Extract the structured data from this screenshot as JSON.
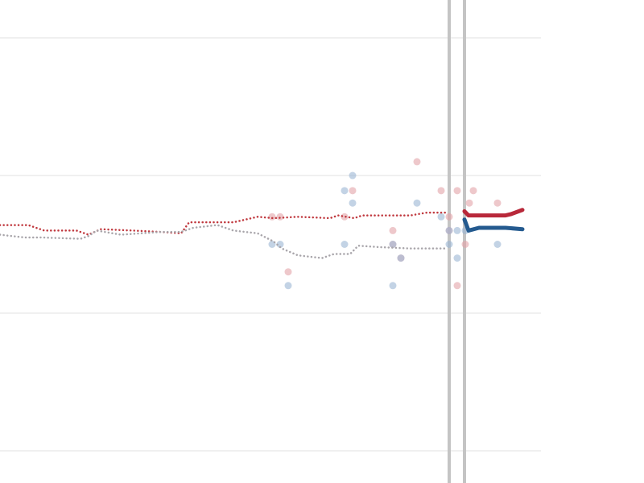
{
  "chart_data": {
    "type": "line",
    "xlim": [
      0,
      80
    ],
    "ylim": [
      -0.234,
      3.275
    ],
    "yticks": [
      0,
      1,
      2,
      3
    ],
    "grid": true,
    "markers": [
      55.8,
      57.7
    ],
    "marker_color": "#c4c4c4",
    "series": [
      {
        "style": "dotted",
        "color": "#c0393f",
        "x": [
          0,
          3.5,
          5.5,
          9.5,
          11,
          12.5,
          16.5,
          20,
          22.5,
          23.5,
          29,
          32,
          34,
          37,
          41,
          42,
          44,
          45,
          51,
          53,
          55.6
        ],
        "values": [
          1.64,
          1.64,
          1.6,
          1.6,
          1.57,
          1.61,
          1.6,
          1.59,
          1.58,
          1.66,
          1.66,
          1.7,
          1.69,
          1.7,
          1.69,
          1.71,
          1.69,
          1.71,
          1.71,
          1.73,
          1.73
        ]
      },
      {
        "style": "dotted",
        "color": "#a9a6ab",
        "x": [
          0,
          3,
          5,
          10,
          11,
          12,
          15,
          20,
          22.5,
          24,
          27,
          29,
          32,
          34,
          35,
          37,
          40,
          41.5,
          43.5,
          44.5,
          47,
          51,
          55.6
        ],
        "values": [
          1.57,
          1.55,
          1.55,
          1.54,
          1.56,
          1.6,
          1.57,
          1.59,
          1.59,
          1.62,
          1.64,
          1.6,
          1.58,
          1.52,
          1.47,
          1.42,
          1.4,
          1.43,
          1.43,
          1.49,
          1.48,
          1.47,
          1.47
        ]
      },
      {
        "style": "solid",
        "color": "#b8283a",
        "x": [
          57.7,
          58.2,
          60,
          62.8,
          63.5,
          64.9
        ],
        "values": [
          1.74,
          1.71,
          1.71,
          1.71,
          1.72,
          1.75
        ]
      },
      {
        "style": "solid",
        "color": "#245a8f",
        "x": [
          57.7,
          58.2,
          59.5,
          62.8,
          64.9
        ],
        "values": [
          1.68,
          1.6,
          1.62,
          1.62,
          1.61
        ]
      },
      {
        "style": "points",
        "color": "#e3a3a8",
        "x": [
          33.8,
          34.8,
          35.8,
          42.8,
          43.8,
          48.8,
          48.8,
          49.8,
          51.8,
          54.8,
          55.8,
          55.8,
          56.8,
          56.8,
          57.8,
          58.3,
          58.8,
          61.8
        ],
        "values": [
          1.7,
          1.7,
          1.3,
          1.7,
          1.89,
          1.6,
          1.5,
          1.4,
          2.1,
          1.89,
          1.7,
          1.6,
          1.89,
          1.2,
          1.5,
          1.8,
          1.89,
          1.8
        ]
      },
      {
        "style": "points",
        "color": "#9bb5d4",
        "x": [
          33.8,
          34.8,
          35.8,
          42.8,
          42.8,
          43.8,
          43.8,
          48.8,
          48.8,
          49.8,
          51.8,
          54.8,
          55.8,
          55.8,
          56.8,
          56.8,
          57.8,
          61.8
        ],
        "values": [
          1.5,
          1.5,
          1.2,
          1.89,
          1.5,
          2.0,
          1.8,
          1.2,
          1.5,
          1.4,
          1.8,
          1.7,
          1.6,
          1.5,
          1.6,
          1.4,
          1.6,
          1.5
        ]
      }
    ]
  }
}
